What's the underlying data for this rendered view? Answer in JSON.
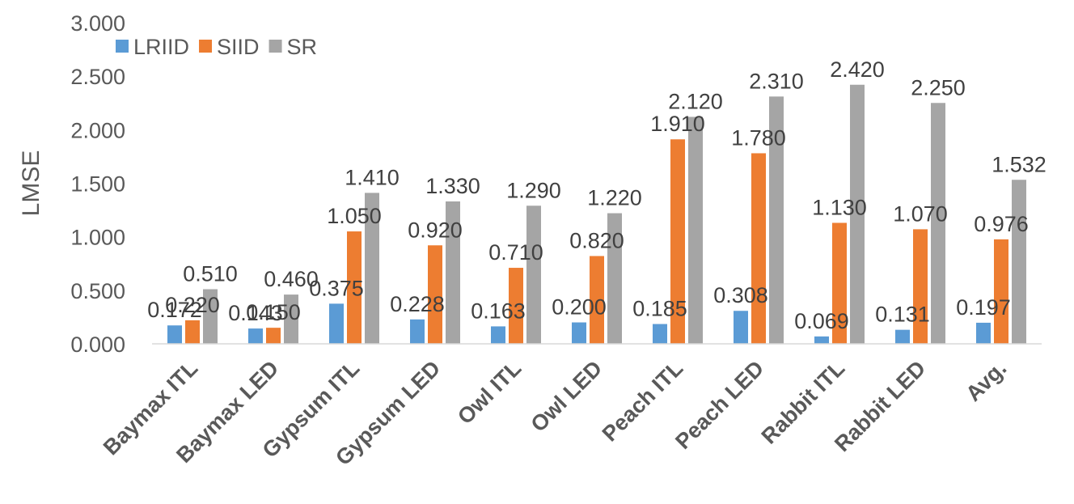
{
  "chart_data": {
    "type": "bar",
    "ylabel": "LMSE",
    "ylim": [
      0,
      3
    ],
    "yticks": [
      "0.000",
      "0.500",
      "1.000",
      "1.500",
      "2.000",
      "2.500",
      "3.000"
    ],
    "grid": false,
    "legend_position": "top-left",
    "categories": [
      "Baymax ITL",
      "Baymax LED",
      "Gypsum ITL",
      "Gypsum LED",
      "Owl ITL",
      "Owl LED",
      "Peach ITL",
      "Peach LED",
      "Rabbit ITL",
      "Rabbit LED",
      "Avg."
    ],
    "series": [
      {
        "name": "LRIID",
        "color": "#5B9BD5",
        "values": [
          0.172,
          0.143,
          0.375,
          0.228,
          0.163,
          0.2,
          0.185,
          0.308,
          0.069,
          0.131,
          0.197
        ],
        "labels": [
          "0.172",
          "0.143",
          "0.375",
          "0.228",
          "0.163",
          "0.200",
          "0.185",
          "0.308",
          "0.069",
          "0.131",
          "0.197"
        ]
      },
      {
        "name": "SIID",
        "color": "#ED7D31",
        "values": [
          0.22,
          0.15,
          1.05,
          0.92,
          0.71,
          0.82,
          1.91,
          1.78,
          1.13,
          1.07,
          0.976
        ],
        "labels": [
          "0.220",
          "0.150",
          "1.050",
          "0.920",
          "0.710",
          "0.820",
          "1.910",
          "1.780",
          "1.130",
          "1.070",
          "0.976"
        ]
      },
      {
        "name": "SR",
        "color": "#A5A5A5",
        "values": [
          0.51,
          0.46,
          1.41,
          1.33,
          1.29,
          1.22,
          2.12,
          2.31,
          2.42,
          2.25,
          1.532
        ],
        "labels": [
          "0.510",
          "0.460",
          "1.410",
          "1.330",
          "1.290",
          "1.220",
          "2.120",
          "2.310",
          "2.420",
          "2.250",
          "1.532"
        ]
      }
    ]
  }
}
